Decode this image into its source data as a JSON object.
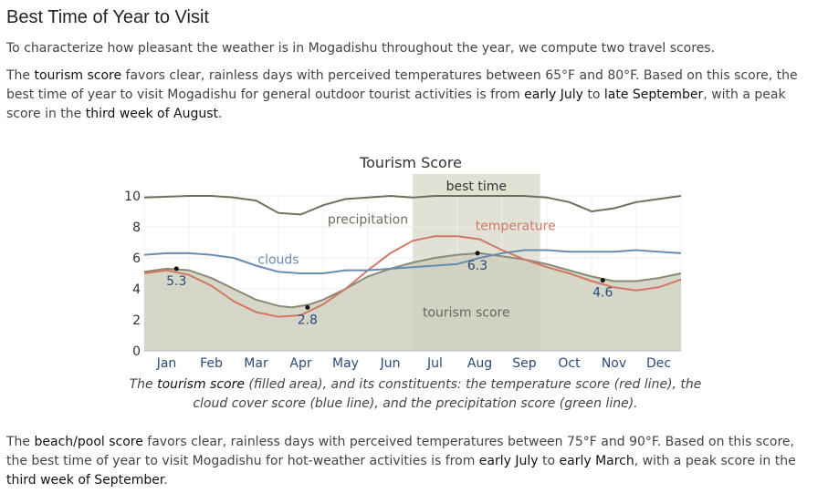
{
  "page": {
    "title": "Best Time of Year to Visit",
    "intro": "To characterize how pleasant the weather is in Mogadishu throughout the year, we compute two travel scores.",
    "tourism_para": {
      "t1": "The ",
      "k1": "tourism score",
      "t2": " favors clear, rainless days with perceived temperatures between 65°F and 80°F. Based on this score, the best time of year to visit Mogadishu for general outdoor tourist activities is from ",
      "k2": "early July",
      "t3": " to ",
      "k3": "late September",
      "t4": ", with a peak score in the ",
      "k4": "third week of August",
      "t5": "."
    },
    "caption": {
      "t1": "The ",
      "k1": "tourism score",
      "t2": " (filled area), and its constituents: the temperature score (red line), the cloud cover score (blue line), and the precipitation score (green line)."
    },
    "beach_para": {
      "t1": "The ",
      "k1": "beach/pool score",
      "t2": " favors clear, rainless days with perceived temperatures between 75°F and 90°F. Based on this score, the best time of year to visit Mogadishu for hot-weather activities is from ",
      "k2": "early July",
      "t3": " to ",
      "k3": "early March",
      "t4": ", with a peak score in the ",
      "k4": "third week of September",
      "t5": "."
    }
  },
  "chart_data": {
    "type": "area",
    "title": "Tourism Score",
    "ylim": [
      0,
      10
    ],
    "yticks": [
      0,
      2,
      4,
      6,
      8,
      10
    ],
    "xlim": [
      0,
      12
    ],
    "categories": [
      "Jan",
      "Feb",
      "Mar",
      "Apr",
      "May",
      "Jun",
      "Jul",
      "Aug",
      "Sep",
      "Oct",
      "Nov",
      "Dec"
    ],
    "grid": true,
    "best_time": {
      "label": "best time",
      "start": 6.0,
      "end": 8.85
    },
    "series": [
      {
        "name": "tourism score",
        "role": "area",
        "color": "#8a8a76",
        "fill": "#cfcfbf",
        "label_at": [
          7.2,
          2.5
        ],
        "x": [
          0,
          0.5,
          1,
          1.5,
          2,
          2.5,
          3,
          3.3,
          3.7,
          4,
          4.5,
          5,
          5.5,
          6,
          6.5,
          7,
          7.5,
          8,
          8.5,
          9,
          9.5,
          10,
          10.5,
          11,
          11.5,
          12
        ],
        "y": [
          5.1,
          5.3,
          5.2,
          4.7,
          4.0,
          3.3,
          2.9,
          2.8,
          3.0,
          3.3,
          4.0,
          4.8,
          5.3,
          5.7,
          6.0,
          6.2,
          6.3,
          6.1,
          5.9,
          5.6,
          5.2,
          4.8,
          4.5,
          4.5,
          4.7,
          5.0
        ]
      },
      {
        "name": "precipitation",
        "role": "line",
        "color": "#6f6f5e",
        "label_at": [
          5.0,
          8.5
        ],
        "x": [
          0,
          0.5,
          1,
          1.5,
          2,
          2.5,
          3,
          3.5,
          4,
          4.5,
          5,
          5.5,
          6,
          6.5,
          7,
          7.5,
          8,
          8.5,
          9,
          9.5,
          10,
          10.5,
          11,
          11.5,
          12
        ],
        "y": [
          9.9,
          9.95,
          10.0,
          10.0,
          9.9,
          9.7,
          8.9,
          8.8,
          9.4,
          9.8,
          9.9,
          10.0,
          9.9,
          10.0,
          10.0,
          10.0,
          10.0,
          10.0,
          9.9,
          9.6,
          9.0,
          9.2,
          9.6,
          9.8,
          10.0
        ]
      },
      {
        "name": "temperature",
        "role": "line",
        "color": "#cf7a64",
        "label_at": [
          8.3,
          8.1
        ],
        "x": [
          0,
          0.5,
          1,
          1.5,
          2,
          2.5,
          3,
          3.5,
          4,
          4.5,
          5,
          5.5,
          6,
          6.5,
          7,
          7.5,
          8,
          8.5,
          9,
          9.5,
          10,
          10.5,
          11,
          11.5,
          12
        ],
        "y": [
          5.0,
          5.2,
          4.9,
          4.2,
          3.2,
          2.5,
          2.2,
          2.3,
          3.0,
          4.0,
          5.2,
          6.3,
          7.1,
          7.4,
          7.4,
          7.2,
          6.5,
          5.9,
          5.4,
          5.0,
          4.5,
          4.1,
          3.9,
          4.1,
          4.6
        ]
      },
      {
        "name": "clouds",
        "role": "line",
        "color": "#6b8bb0",
        "label_at": [
          3.0,
          5.9
        ],
        "x": [
          0,
          0.5,
          1,
          1.5,
          2,
          2.5,
          3,
          3.5,
          4,
          4.5,
          5,
          5.5,
          6,
          6.5,
          7,
          7.5,
          8,
          8.5,
          9,
          9.5,
          10,
          10.5,
          11,
          11.5,
          12
        ],
        "y": [
          6.2,
          6.3,
          6.3,
          6.2,
          6.0,
          5.5,
          5.1,
          5.0,
          5.0,
          5.2,
          5.2,
          5.3,
          5.4,
          5.5,
          5.6,
          6.0,
          6.3,
          6.5,
          6.5,
          6.4,
          6.4,
          6.4,
          6.5,
          6.4,
          6.3
        ]
      }
    ],
    "annotations": [
      {
        "label": "5.3",
        "x": 0.72,
        "y": 5.3
      },
      {
        "label": "2.8",
        "x": 3.65,
        "y": 2.8
      },
      {
        "label": "6.3",
        "x": 7.45,
        "y": 6.3
      },
      {
        "label": "4.6",
        "x": 10.25,
        "y": 4.55
      }
    ]
  }
}
